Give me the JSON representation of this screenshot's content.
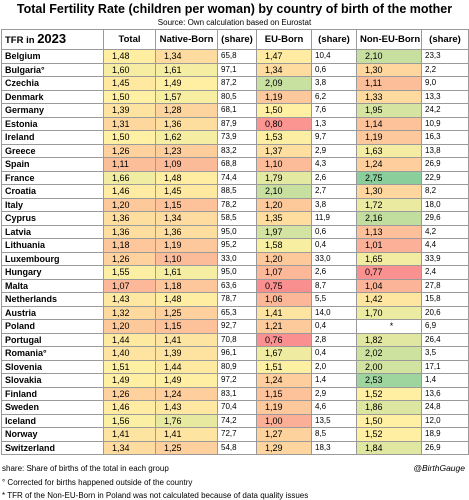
{
  "header": {
    "title": "Total Fertility Rate (children per woman) by country of birth of the mother",
    "source": "Source: Own calculation based on Eurostat"
  },
  "table": {
    "columns": [
      "TFR in",
      "2023",
      "Total",
      "Native-Born",
      "(share)",
      "EU-Born",
      "(share)",
      "Non-EU-Born",
      "(share)"
    ],
    "rows": [
      [
        "Belgium",
        "1,48",
        "1,34",
        "65,8",
        "1,47",
        "10,4",
        "2,10",
        "23,3"
      ],
      [
        "Bulgaria°",
        "1,60",
        "1,61",
        "97,1",
        "1,34",
        "0,6",
        "1,30",
        "2,2"
      ],
      [
        "Czechia",
        "1,45",
        "1,49",
        "87,2",
        "2,09",
        "3,8",
        "1,11",
        "9,0"
      ],
      [
        "Denmark",
        "1,50",
        "1,57",
        "80,5",
        "1,19",
        "6,2",
        "1,33",
        "13,3"
      ],
      [
        "Germany",
        "1,39",
        "1,28",
        "68,1",
        "1,50",
        "7,6",
        "1,95",
        "24,2"
      ],
      [
        "Estonia",
        "1,31",
        "1,36",
        "87,9",
        "0,80",
        "1,3",
        "1,14",
        "10,9"
      ],
      [
        "Ireland",
        "1,50",
        "1,62",
        "73,9",
        "1,53",
        "9,7",
        "1,19",
        "16,3"
      ],
      [
        "Greece",
        "1,26",
        "1,23",
        "83,2",
        "1,37",
        "2,9",
        "1,63",
        "13,8"
      ],
      [
        "Spain",
        "1,11",
        "1,09",
        "68,8",
        "1,10",
        "4,3",
        "1,24",
        "26,9"
      ],
      [
        "France",
        "1,66",
        "1,48",
        "74,4",
        "1,79",
        "2,6",
        "2,75",
        "22,9"
      ],
      [
        "Croatia",
        "1,46",
        "1,45",
        "88,5",
        "2,10",
        "2,7",
        "1,30",
        "8,2"
      ],
      [
        "Italy",
        "1,20",
        "1,15",
        "78,2",
        "1,20",
        "3,8",
        "1,72",
        "18,0"
      ],
      [
        "Cyprus",
        "1,36",
        "1,34",
        "58,5",
        "1,35",
        "11,9",
        "2,16",
        "29,6"
      ],
      [
        "Latvia",
        "1,36",
        "1,36",
        "95,0",
        "1,97",
        "0,6",
        "1,13",
        "4,2"
      ],
      [
        "Lithuania",
        "1,18",
        "1,19",
        "95,2",
        "1,58",
        "0,4",
        "1,01",
        "4,4"
      ],
      [
        "Luxembourg",
        "1,26",
        "1,10",
        "33,0",
        "1,20",
        "33,0",
        "1,65",
        "33,9"
      ],
      [
        "Hungary",
        "1,55",
        "1,61",
        "95,0",
        "1,07",
        "2,6",
        "0,77",
        "2,4"
      ],
      [
        "Malta",
        "1,07",
        "1,18",
        "63,6",
        "0,75",
        "8,7",
        "1,04",
        "27,8"
      ],
      [
        "Netherlands",
        "1,43",
        "1,48",
        "78,7",
        "1,06",
        "5,5",
        "1,42",
        "15,8"
      ],
      [
        "Austria",
        "1,32",
        "1,25",
        "65,3",
        "1,41",
        "14,0",
        "1,70",
        "20,6"
      ],
      [
        "Poland",
        "1,20",
        "1,15",
        "92,7",
        "1,21",
        "0,4",
        "*",
        "6,9"
      ],
      [
        "Portugal",
        "1,44",
        "1,41",
        "70,8",
        "0,76",
        "2,8",
        "1,82",
        "26,4"
      ],
      [
        "Romania°",
        "1,40",
        "1,39",
        "96,1",
        "1,67",
        "0,4",
        "2,02",
        "3,5"
      ],
      [
        "Slovenia",
        "1,51",
        "1,44",
        "80,9",
        "1,51",
        "2,0",
        "2,00",
        "17,1"
      ],
      [
        "Slovakia",
        "1,49",
        "1,49",
        "97,2",
        "1,24",
        "1,4",
        "2,53",
        "1,4"
      ],
      [
        "Finland",
        "1,26",
        "1,24",
        "83,1",
        "1,15",
        "2,9",
        "1,52",
        "13,6"
      ],
      [
        "Sweden",
        "1,46",
        "1,43",
        "70,4",
        "1,19",
        "4,6",
        "1,86",
        "24,8"
      ],
      [
        "Iceland",
        "1,56",
        "1,76",
        "74,2",
        "1,00",
        "13,5",
        "1,50",
        "12,0"
      ],
      [
        "Norway",
        "1,41",
        "1,41",
        "72,7",
        "1,27",
        "8,5",
        "1,52",
        "18,9"
      ],
      [
        "Switzerland",
        "1,34",
        "1,25",
        "54,8",
        "1,29",
        "18,3",
        "1,84",
        "26,9"
      ]
    ]
  },
  "footer": {
    "note_share": "share: Share of births of the total in each group",
    "credit": "@BirthGauge",
    "note_corrected": "° Corrected for births happened outside of the country",
    "note_poland": "* TFR of the Non-EU-Born in Poland was not calculated because of data quality issues"
  }
}
